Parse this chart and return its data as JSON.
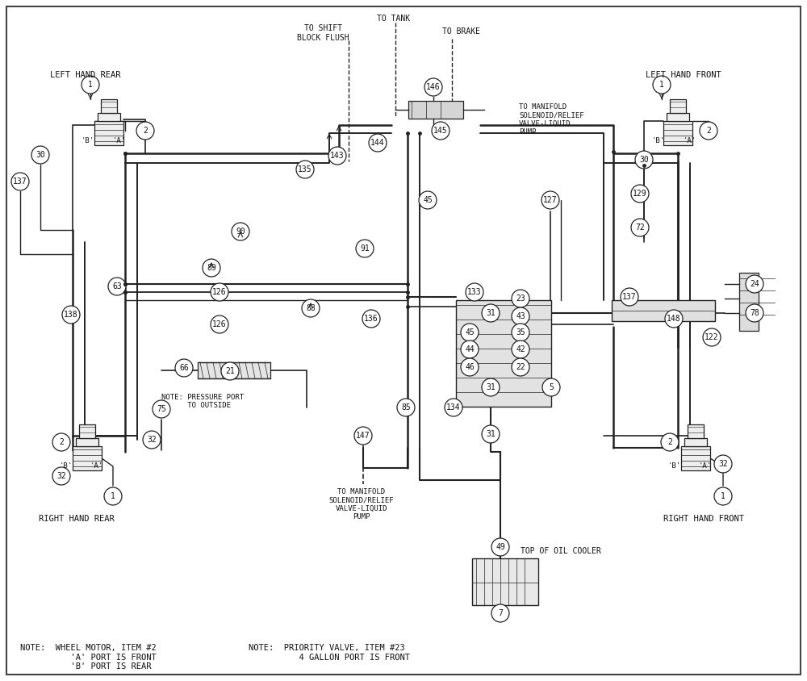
{
  "bg_color": "#ffffff",
  "line_color": "#222222",
  "text_color": "#111111",
  "figsize": [
    10.0,
    8.44
  ],
  "dpi": 100,
  "labels": {
    "left_hand_rear": "LEFT HAND REAR",
    "left_hand_front": "LEFT HAND FRONT",
    "right_hand_rear": "RIGHT HAND REAR",
    "right_hand_front": "RIGHT HAND FRONT",
    "to_tank": "TO TANK",
    "to_brake": "TO BRAKE",
    "to_shift_block_flush": "TO SHIFT\nBLOCK FLUSH",
    "to_manifold_top": "TO MANIFOLD\nSOLENOID/RELIEF\nVALVE-LIQUID\nPUMP",
    "to_manifold_bottom": "TO MANIFOLD\nSOLENOID/RELIEF\nVALVE-LIQUID\nPUMP",
    "top_of_oil_cooler": "TOP OF OIL COOLER",
    "note_pressure_port": "NOTE: PRESSURE PORT\n      TO OUTSIDE",
    "note_wheel_motor": "NOTE:  WHEEL MOTOR, ITEM #2\n          'A' PORT IS FRONT\n          'B' PORT IS REAR",
    "note_priority_valve": "NOTE:  PRIORITY VALVE, ITEM #23\n          4 GALLON PORT IS FRONT"
  }
}
